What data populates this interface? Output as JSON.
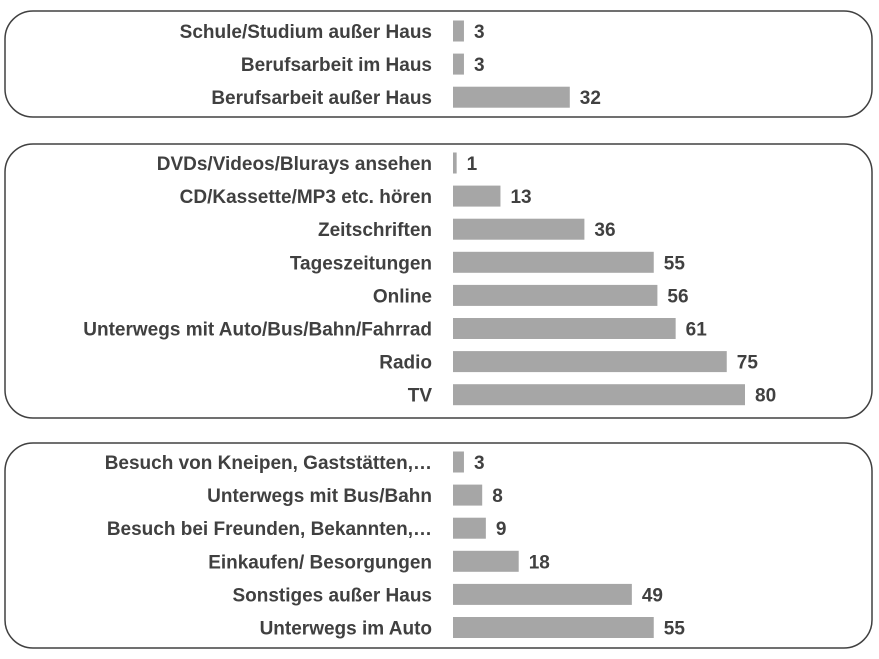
{
  "colors": {
    "bar": "#a6a6a6",
    "text": "#404040",
    "frame": "#404040"
  },
  "chart_data": [
    {
      "type": "bar",
      "orientation": "horizontal",
      "categories": [
        "Schule/Studium außer Haus",
        "Berufsarbeit im Haus",
        "Berufsarbeit außer Haus"
      ],
      "values": [
        3,
        3,
        32
      ]
    },
    {
      "type": "bar",
      "orientation": "horizontal",
      "categories": [
        "DVDs/Videos/Blurays ansehen",
        "CD/Kassette/MP3 etc. hören",
        "Zeitschriften",
        "Tageszeitungen",
        "Online",
        "Unterwegs mit Auto/Bus/Bahn/Fahrrad",
        "Radio",
        "TV"
      ],
      "values": [
        1,
        13,
        36,
        55,
        56,
        61,
        75,
        80
      ]
    },
    {
      "type": "bar",
      "orientation": "horizontal",
      "categories": [
        "Besuch von Kneipen, Gaststätten,…",
        "Unterwegs mit Bus/Bahn",
        "Besuch bei Freunden, Bekannten,…",
        "Einkaufen/ Besorgungen",
        "Sonstiges außer Haus",
        "Unterwegs im Auto"
      ],
      "values": [
        3,
        8,
        9,
        18,
        49,
        55
      ]
    }
  ]
}
